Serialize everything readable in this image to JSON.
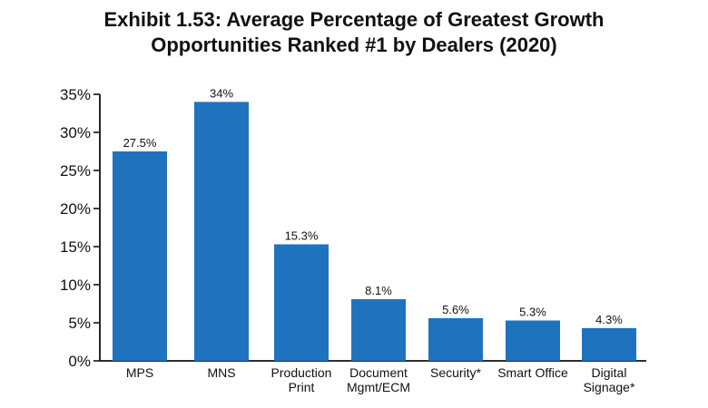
{
  "chart_data": {
    "type": "bar",
    "title_lines": [
      "Exhibit 1.53: Average Percentage of Greatest Growth",
      "Opportunities Ranked #1 by Dealers (2020)"
    ],
    "categories": [
      [
        "MPS"
      ],
      [
        "MNS"
      ],
      [
        "Production",
        "Print"
      ],
      [
        "Document",
        "Mgmt/ECM"
      ],
      [
        "Security*"
      ],
      [
        "Smart Office"
      ],
      [
        "Digital",
        "Signage*"
      ]
    ],
    "values": [
      27.5,
      34,
      15.3,
      8.1,
      5.6,
      5.3,
      4.3
    ],
    "value_labels": [
      "27.5%",
      "34%",
      "15.3%",
      "8.1%",
      "5.6%",
      "5.3%",
      "4.3%"
    ],
    "y_ticks": [
      0,
      5,
      10,
      15,
      20,
      25,
      30,
      35
    ],
    "y_tick_labels": [
      "0%",
      "5%",
      "10%",
      "15%",
      "20%",
      "25%",
      "30%",
      "35%"
    ],
    "ylim": [
      0,
      35
    ],
    "grid": false,
    "xlabel": "",
    "ylabel": "",
    "colors": {
      "bar": "#1f73be",
      "axis": "#111111"
    }
  }
}
